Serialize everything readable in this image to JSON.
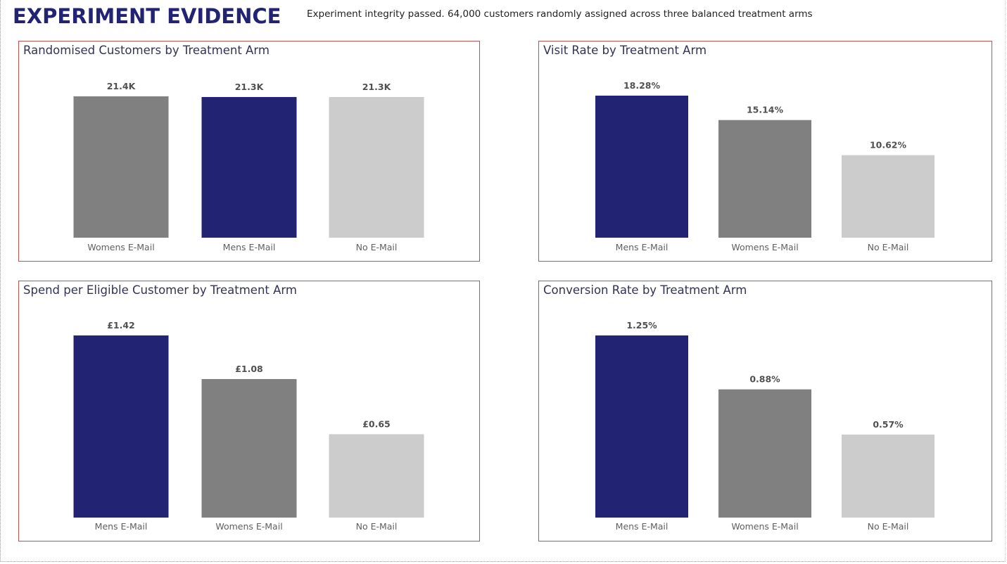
{
  "header": {
    "title": "EXPERIMENT EVIDENCE",
    "subtitle": "Experiment integrity passed. 64,000 customers randomly assigned across three balanced treatment arms"
  },
  "colors": {
    "mens": "#232374",
    "womens": "#808080",
    "none": "#cccccc",
    "panel_border": "#c0504d",
    "title": "#232374"
  },
  "chart_data": [
    {
      "type": "bar",
      "title": "Randomised Customers by Treatment Arm",
      "categories": [
        "Womens E-Mail",
        "Mens E-Mail",
        "No E-Mail"
      ],
      "values": [
        21400,
        21300,
        21300
      ],
      "labels": [
        "21.4K",
        "21.3K",
        "21.3K"
      ],
      "colors": [
        "#808080",
        "#232374",
        "#cccccc"
      ],
      "ylim": [
        0,
        21400
      ]
    },
    {
      "type": "bar",
      "title": "Visit Rate by Treatment Arm",
      "categories": [
        "Mens E-Mail",
        "Womens E-Mail",
        "No E-Mail"
      ],
      "values": [
        18.28,
        15.14,
        10.62
      ],
      "labels": [
        "18.28%",
        "15.14%",
        "10.62%"
      ],
      "colors": [
        "#232374",
        "#808080",
        "#cccccc"
      ],
      "ylim": [
        0,
        18.28
      ]
    },
    {
      "type": "bar",
      "title": "Spend per Eligible Customer by Treatment Arm",
      "categories": [
        "Mens E-Mail",
        "Womens E-Mail",
        "No E-Mail"
      ],
      "values": [
        1.42,
        1.08,
        0.65
      ],
      "labels": [
        "£1.42",
        "£1.08",
        "£0.65"
      ],
      "colors": [
        "#232374",
        "#808080",
        "#cccccc"
      ],
      "ylim": [
        0,
        1.42
      ]
    },
    {
      "type": "bar",
      "title": "Conversion Rate by Treatment Arm",
      "categories": [
        "Mens E-Mail",
        "Womens E-Mail",
        "No E-Mail"
      ],
      "values": [
        1.25,
        0.88,
        0.57
      ],
      "labels": [
        "1.25%",
        "0.88%",
        "0.57%"
      ],
      "colors": [
        "#232374",
        "#808080",
        "#cccccc"
      ],
      "ylim": [
        0,
        1.25
      ]
    }
  ]
}
